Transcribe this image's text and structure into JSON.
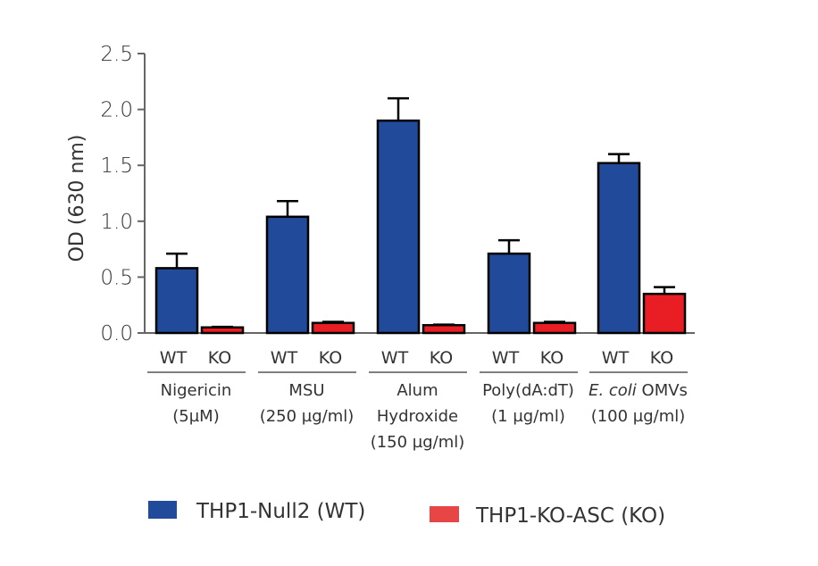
{
  "chart_data": {
    "type": "bar",
    "title": "",
    "xlabel": "",
    "ylabel": "OD (630 nm)",
    "ylim": [
      0,
      2.5
    ],
    "yticks": [
      0.0,
      0.5,
      1.0,
      1.5,
      2.0,
      2.5
    ],
    "ytick_labels": [
      "0.0",
      "0.5",
      "1.0",
      "1.5",
      "2.0",
      "2.5"
    ],
    "grid": false,
    "legend_position": "bottom",
    "group_sub_labels": [
      "WT",
      "KO"
    ],
    "categories": [
      {
        "lines": [
          "Nigericin",
          "(5µM)"
        ],
        "italic_prefix": ""
      },
      {
        "lines": [
          "MSU",
          "(250 µg/ml)"
        ],
        "italic_prefix": ""
      },
      {
        "lines": [
          "Alum",
          "Hydroxide",
          "(150 µg/ml)"
        ],
        "italic_prefix": ""
      },
      {
        "lines": [
          "Poly(dA:dT)",
          "(1 µg/ml)"
        ],
        "italic_prefix": ""
      },
      {
        "lines": [
          "OMVs",
          "(100 µg/ml)"
        ],
        "italic_prefix": "E. coli"
      }
    ],
    "series": [
      {
        "name": "THP1-Null2 (WT)",
        "color": "#214a9a",
        "values": [
          0.58,
          1.04,
          1.9,
          0.71,
          1.52
        ],
        "errors": [
          0.13,
          0.14,
          0.2,
          0.12,
          0.08
        ]
      },
      {
        "name": "THP1-KO-ASC (KO)",
        "color": "#e81e24",
        "legend_color": "#e84646",
        "values": [
          0.05,
          0.09,
          0.07,
          0.09,
          0.35
        ],
        "errors": [
          0.005,
          0.01,
          0.005,
          0.01,
          0.06
        ]
      }
    ]
  }
}
